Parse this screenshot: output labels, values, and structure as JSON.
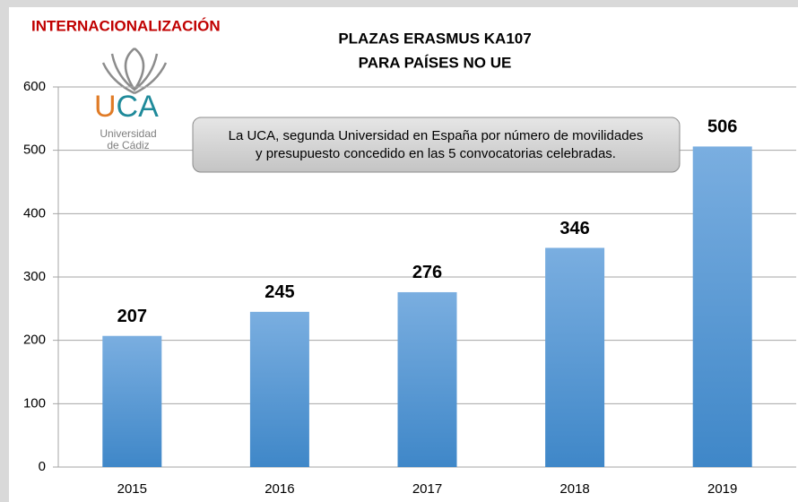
{
  "header": "INTERNACIONALIZACIÓN",
  "logo": {
    "text": "UCA",
    "line1": "Universidad",
    "line2": "de Cádiz"
  },
  "chart_data": {
    "type": "bar",
    "title": [
      "PLAZAS ERASMUS KA107",
      "PARA PAÍSES NO UE"
    ],
    "annotation": [
      "La UCA, segunda Universidad en España por número de movilidades",
      "y presupuesto concedido en las 5 convocatorias celebradas."
    ],
    "categories": [
      "2015",
      "2016",
      "2017",
      "2018",
      "2019"
    ],
    "values": [
      207,
      245,
      276,
      346,
      506
    ],
    "color": "#5b9bd5",
    "ylim": [
      0,
      600
    ],
    "yticks": [
      0,
      100,
      200,
      300,
      400,
      500,
      600
    ],
    "grid": true
  }
}
